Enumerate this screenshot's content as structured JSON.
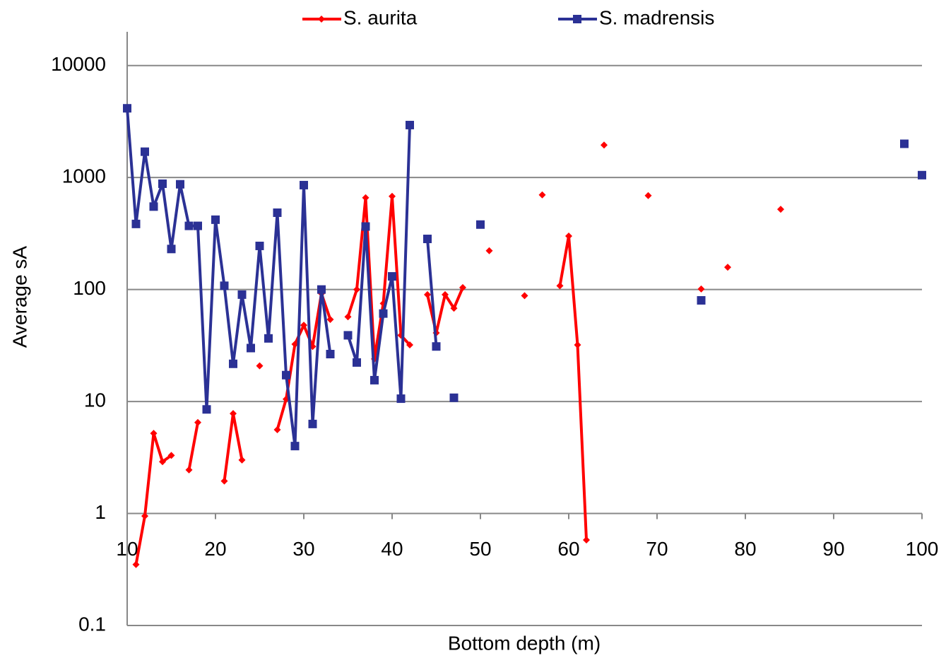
{
  "chart_data": {
    "type": "line",
    "x_label": "Bottom depth  (m)",
    "y_label": "Average sA",
    "x": [
      10,
      11,
      12,
      13,
      14,
      15,
      16,
      17,
      18,
      19,
      20,
      21,
      22,
      23,
      24,
      25,
      26,
      27,
      28,
      29,
      30,
      31,
      32,
      33,
      34,
      35,
      36,
      37,
      38,
      39,
      40,
      41,
      42,
      43,
      44,
      45,
      46,
      47,
      48,
      49,
      50,
      51,
      52,
      53,
      54,
      55,
      56,
      57,
      58,
      59,
      60,
      61,
      62,
      63,
      64,
      65,
      66,
      67,
      68,
      69,
      70,
      71,
      72,
      73,
      74,
      75,
      76,
      77,
      78,
      79,
      80,
      81,
      82,
      83,
      84,
      85,
      86,
      87,
      88,
      89,
      90,
      91,
      92,
      93,
      94,
      95,
      96,
      97,
      98,
      99,
      100
    ],
    "series": [
      {
        "name": "S. aurita",
        "color": "#ff0000",
        "marker": "diamond",
        "values": [
          null,
          0.35,
          0.95,
          5.2,
          2.9,
          3.3,
          null,
          2.45,
          6.5,
          null,
          null,
          1.95,
          7.8,
          3.0,
          null,
          20.8,
          null,
          5.6,
          10.5,
          32.5,
          48,
          31,
          92,
          54,
          null,
          57,
          100,
          660,
          24,
          75,
          680,
          39,
          32,
          null,
          90,
          41,
          90,
          68,
          104,
          null,
          null,
          222,
          null,
          null,
          null,
          88,
          null,
          700,
          null,
          108,
          300,
          32,
          0.58,
          null,
          1950,
          null,
          null,
          null,
          null,
          690,
          null,
          null,
          null,
          null,
          null,
          101,
          null,
          null,
          158,
          null,
          null,
          null,
          null,
          null,
          520,
          null,
          null,
          null,
          null,
          null,
          null,
          null,
          null,
          null,
          null,
          null,
          null,
          null,
          null,
          null,
          null
        ]
      },
      {
        "name": "S. madrensis",
        "color": "#2b3195",
        "marker": "square",
        "values": [
          4150,
          385,
          1700,
          550,
          880,
          230,
          870,
          370,
          370,
          8.5,
          420,
          108,
          21.7,
          90,
          30,
          245,
          36.6,
          485,
          17.2,
          4.0,
          855,
          6.3,
          100,
          26.5,
          null,
          39,
          22.3,
          365,
          15.5,
          61,
          131,
          10.6,
          2940,
          null,
          283,
          31,
          null,
          10.8,
          null,
          null,
          380,
          null,
          null,
          null,
          null,
          null,
          null,
          null,
          null,
          null,
          null,
          null,
          null,
          null,
          null,
          null,
          null,
          null,
          null,
          null,
          null,
          null,
          null,
          null,
          null,
          80,
          null,
          null,
          null,
          null,
          null,
          null,
          null,
          null,
          null,
          null,
          null,
          null,
          null,
          null,
          null,
          null,
          null,
          null,
          null,
          null,
          null,
          null,
          2000,
          null,
          1050
        ]
      }
    ],
    "xlim": [
      10,
      100
    ],
    "xticks": [
      10,
      20,
      30,
      40,
      50,
      60,
      70,
      80,
      90,
      100
    ],
    "ylim": [
      0.1,
      20000
    ],
    "yticks": [
      0.1,
      1,
      10,
      100,
      1000,
      10000
    ],
    "y_log": true,
    "grid": true,
    "x_axis_cross": 1,
    "legend": "top"
  }
}
